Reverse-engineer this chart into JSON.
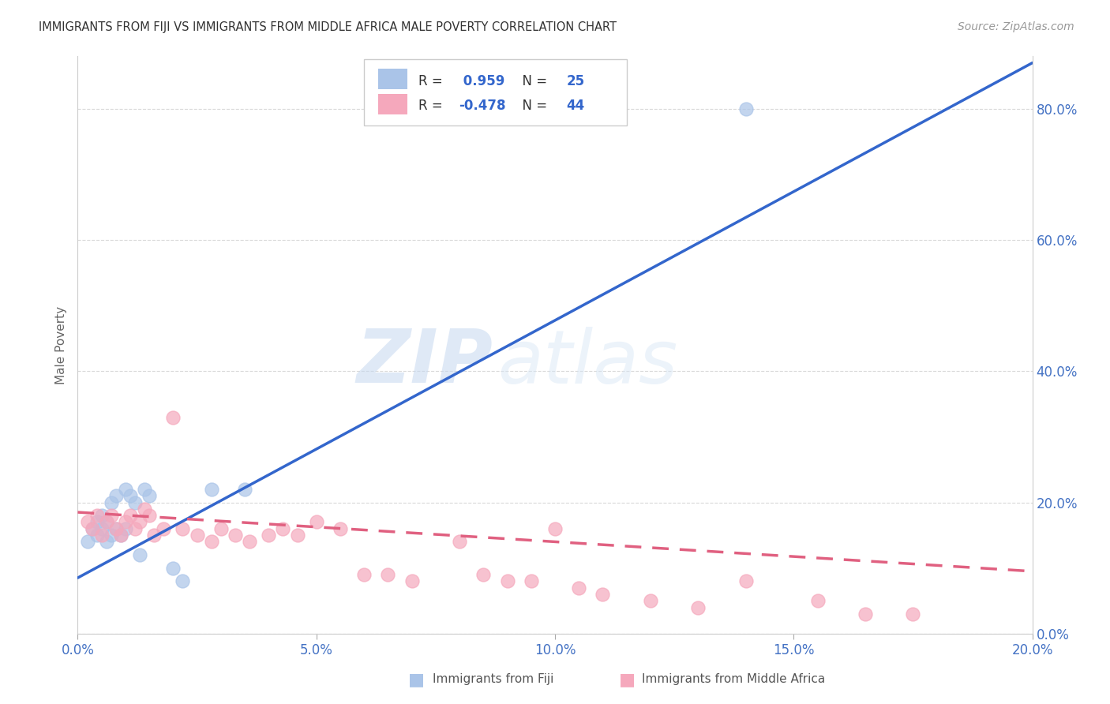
{
  "title": "IMMIGRANTS FROM FIJI VS IMMIGRANTS FROM MIDDLE AFRICA MALE POVERTY CORRELATION CHART",
  "source": "Source: ZipAtlas.com",
  "ylabel_label": "Male Poverty",
  "xlim": [
    0.0,
    0.2
  ],
  "ylim": [
    0.0,
    0.88
  ],
  "x_ticks": [
    0.0,
    0.05,
    0.1,
    0.15,
    0.2
  ],
  "y_ticks": [
    0.0,
    0.2,
    0.4,
    0.6,
    0.8
  ],
  "fiji_R": 0.959,
  "fiji_N": 25,
  "midafrica_R": -0.478,
  "midafrica_N": 44,
  "fiji_color": "#aac4e8",
  "fiji_line_color": "#3366cc",
  "midafrica_color": "#f5a8bc",
  "midafrica_line_color": "#e06080",
  "fiji_scatter_x": [
    0.002,
    0.003,
    0.004,
    0.004,
    0.005,
    0.005,
    0.006,
    0.006,
    0.007,
    0.007,
    0.008,
    0.008,
    0.009,
    0.01,
    0.01,
    0.011,
    0.012,
    0.013,
    0.014,
    0.015,
    0.02,
    0.022,
    0.028,
    0.035,
    0.14
  ],
  "fiji_scatter_y": [
    0.14,
    0.16,
    0.15,
    0.17,
    0.16,
    0.18,
    0.14,
    0.17,
    0.15,
    0.2,
    0.16,
    0.21,
    0.15,
    0.16,
    0.22,
    0.21,
    0.2,
    0.12,
    0.22,
    0.21,
    0.1,
    0.08,
    0.22,
    0.22,
    0.8
  ],
  "midafrica_scatter_x": [
    0.002,
    0.003,
    0.004,
    0.005,
    0.006,
    0.007,
    0.008,
    0.009,
    0.01,
    0.011,
    0.012,
    0.013,
    0.014,
    0.015,
    0.016,
    0.018,
    0.02,
    0.022,
    0.025,
    0.028,
    0.03,
    0.033,
    0.036,
    0.04,
    0.043,
    0.046,
    0.05,
    0.055,
    0.06,
    0.065,
    0.07,
    0.08,
    0.085,
    0.09,
    0.095,
    0.1,
    0.105,
    0.11,
    0.12,
    0.13,
    0.14,
    0.155,
    0.165,
    0.175
  ],
  "midafrica_scatter_y": [
    0.17,
    0.16,
    0.18,
    0.15,
    0.17,
    0.18,
    0.16,
    0.15,
    0.17,
    0.18,
    0.16,
    0.17,
    0.19,
    0.18,
    0.15,
    0.16,
    0.33,
    0.16,
    0.15,
    0.14,
    0.16,
    0.15,
    0.14,
    0.15,
    0.16,
    0.15,
    0.17,
    0.16,
    0.09,
    0.09,
    0.08,
    0.14,
    0.09,
    0.08,
    0.08,
    0.16,
    0.07,
    0.06,
    0.05,
    0.04,
    0.08,
    0.05,
    0.03,
    0.03
  ],
  "fiji_line_x": [
    0.0,
    0.2
  ],
  "fiji_line_y": [
    0.085,
    0.87
  ],
  "midafrica_line_x": [
    0.0,
    0.2
  ],
  "midafrica_line_y": [
    0.185,
    0.095
  ],
  "watermark_zip": "ZIP",
  "watermark_atlas": "atlas",
  "background_color": "#ffffff",
  "grid_color": "#d0d0d0"
}
